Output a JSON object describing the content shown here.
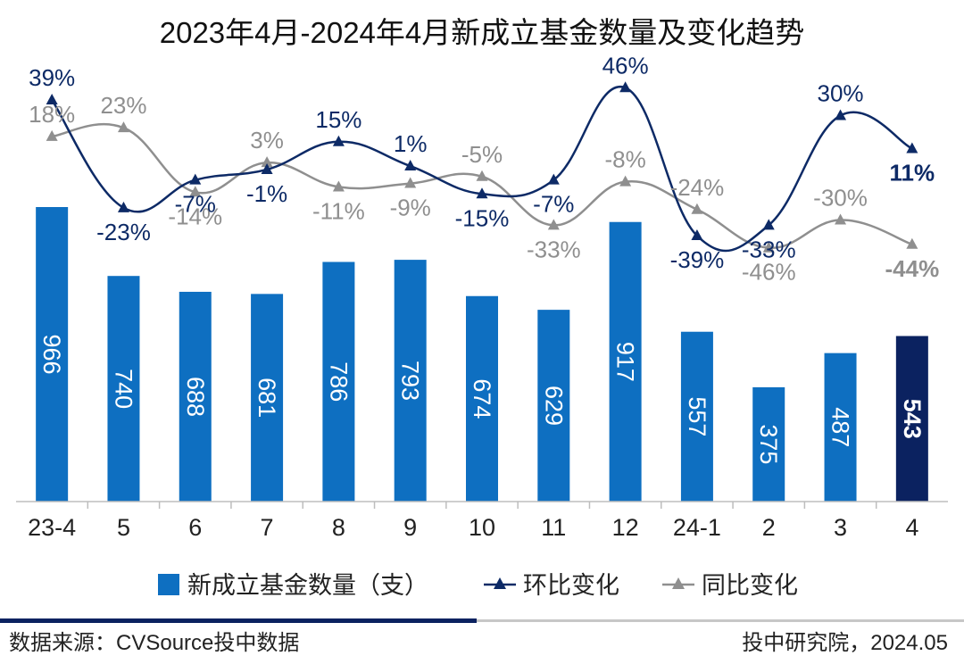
{
  "chart_data": {
    "type": "bar+line",
    "title": "2023年4月-2024年4月新成立基金数量及变化趋势",
    "categories": [
      "23-4",
      "5",
      "6",
      "7",
      "8",
      "9",
      "10",
      "11",
      "12",
      "24-1",
      "2",
      "3",
      "4"
    ],
    "series": [
      {
        "name": "新成立基金数量（支）",
        "type": "bar",
        "values": [
          966,
          740,
          688,
          681,
          786,
          793,
          674,
          629,
          917,
          557,
          375,
          487,
          543
        ],
        "labels": [
          "966",
          "740",
          "688",
          "681",
          "786",
          "793",
          "674",
          "629",
          "917",
          "557",
          "375",
          "487",
          "543"
        ],
        "color": "#0e6fc1",
        "highlight_color": "#0b2260",
        "highlight_index": 12
      },
      {
        "name": "环比变化",
        "type": "line",
        "values": [
          39,
          -23,
          -7,
          -1,
          15,
          1,
          -15,
          -7,
          46,
          -39,
          -33,
          30,
          11
        ],
        "labels": [
          "39%",
          "-23%",
          "-7%",
          "-1%",
          "15%",
          "1%",
          "-15%",
          "-7%",
          "46%",
          "-39%",
          "-33%",
          "30%",
          "11%"
        ],
        "color": "#0d2a66",
        "marker": "triangle"
      },
      {
        "name": "同比变化",
        "type": "line",
        "values": [
          18,
          23,
          -14,
          3,
          -11,
          -9,
          -5,
          -33,
          -8,
          -24,
          -46,
          -30,
          -44
        ],
        "labels": [
          "18%",
          "23%",
          "-14%",
          "3%",
          "-11%",
          "-9%",
          "-5%",
          "-33%",
          "-8%",
          "-24%",
          "-46%",
          "-30%",
          "-44%"
        ],
        "color": "#8f8f8f",
        "marker": "triangle"
      }
    ],
    "legend_position": "bottom",
    "grid": false
  },
  "footer": {
    "source": "数据来源：CVSource投中数据",
    "credit": "投中研究院，2024.05"
  }
}
